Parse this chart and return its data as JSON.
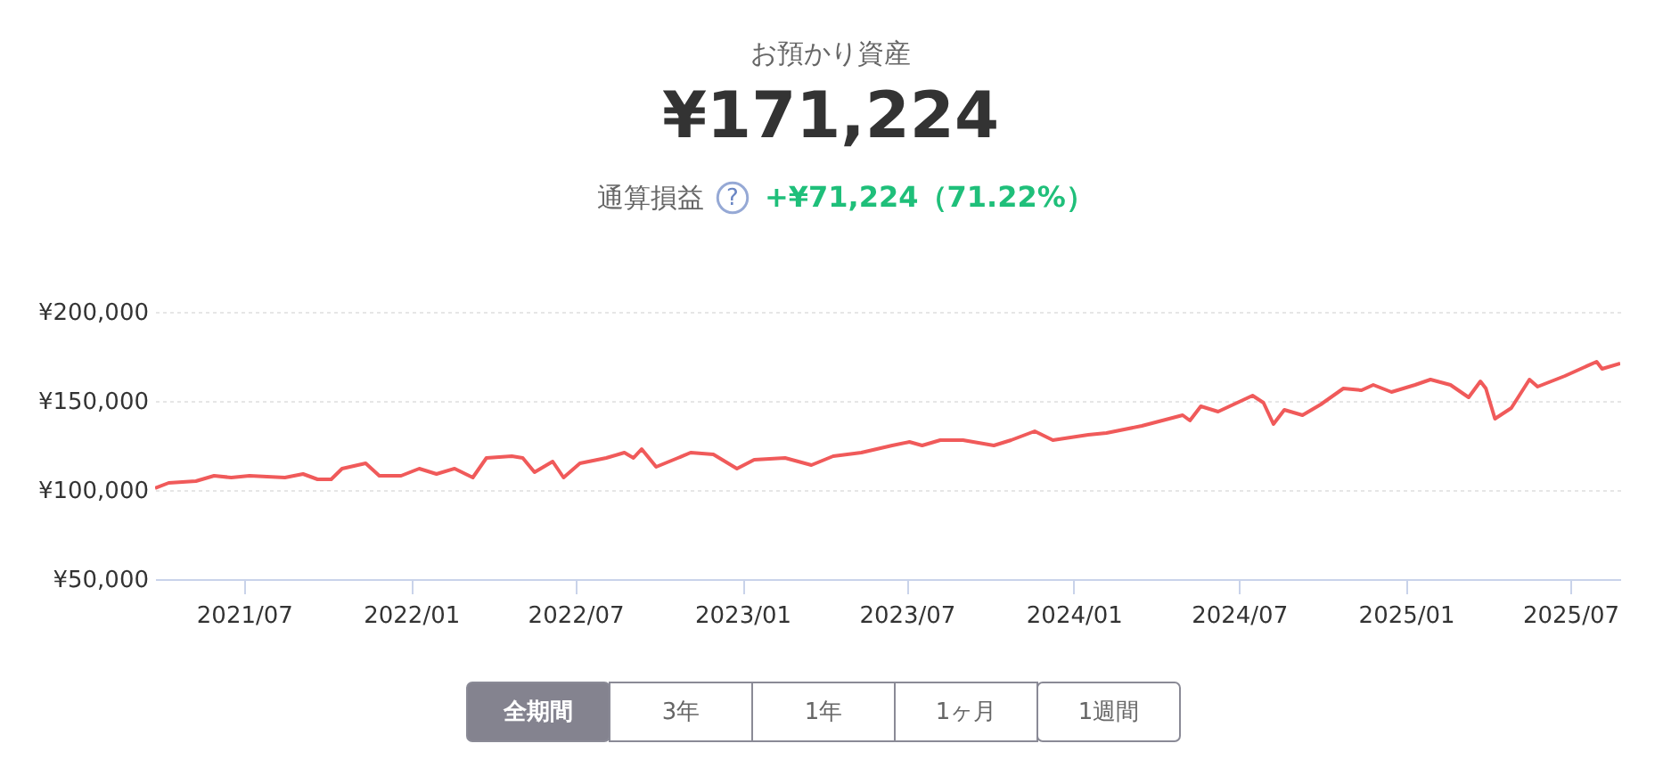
{
  "chart_data": {
    "type": "line",
    "title": "お預かり資産",
    "subtitle": "¥171,224",
    "annotations": [
      "通算損益",
      "?",
      "+¥71,224（71.22%）",
      "全期間",
      "3年",
      "1年",
      "1ヶ月",
      "1週間"
    ],
    "x": [
      "2021-03-25",
      "2021-04-09",
      "2021-05-09",
      "2021-05-29",
      "2021-06-17",
      "2021-07-07",
      "2021-08-15",
      "2021-09-04",
      "2021-09-20",
      "2021-10-05",
      "2021-10-17",
      "2021-11-12",
      "2021-11-27",
      "2021-12-21",
      "2022-01-10",
      "2022-01-29",
      "2022-02-18",
      "2022-03-10",
      "2022-03-25",
      "2022-04-22",
      "2022-05-04",
      "2022-05-17",
      "2022-06-06",
      "2022-06-18",
      "2022-07-06",
      "2022-08-04",
      "2022-08-24",
      "2022-09-03",
      "2022-09-12",
      "2022-09-28",
      "2022-10-22",
      "2022-11-05",
      "2022-11-30",
      "2022-12-26",
      "2023-01-14",
      "2023-02-17",
      "2023-03-18",
      "2023-04-11",
      "2023-05-12",
      "2023-06-15",
      "2023-07-04",
      "2023-07-18",
      "2023-08-07",
      "2023-09-01",
      "2023-10-05",
      "2023-10-24",
      "2023-11-19",
      "2023-12-09",
      "2024-01-17",
      "2024-02-06",
      "2024-03-16",
      "2024-04-30",
      "2024-05-08",
      "2024-05-20",
      "2024-06-08",
      "2024-07-16",
      "2024-07-28",
      "2024-08-08",
      "2024-08-20",
      "2024-09-09",
      "2024-09-29",
      "2024-10-24",
      "2024-11-13",
      "2024-11-26",
      "2024-12-16",
      "2025-01-11",
      "2025-01-28",
      "2025-02-19",
      "2025-03-11",
      "2025-03-24",
      "2025-03-30",
      "2025-04-09",
      "2025-04-27",
      "2025-05-17",
      "2025-05-26",
      "2025-06-25",
      "2025-07-30",
      "2025-08-05",
      "2025-08-25"
    ],
    "series": [
      {
        "color": "#f05a5a",
        "values": [
          101000,
          104000,
          105000,
          108000,
          107000,
          108000,
          107000,
          109000,
          106000,
          106000,
          112000,
          115000,
          108000,
          108000,
          112000,
          109000,
          112000,
          107000,
          118000,
          119000,
          118000,
          110000,
          116000,
          107000,
          115000,
          118000,
          121000,
          118000,
          123000,
          113000,
          118000,
          121000,
          120000,
          112000,
          117000,
          118000,
          114000,
          119000,
          121000,
          125000,
          127000,
          125000,
          128000,
          128000,
          125000,
          128000,
          133000,
          128000,
          131000,
          132000,
          136000,
          142000,
          139000,
          147000,
          144000,
          153000,
          149000,
          137000,
          145000,
          142000,
          148000,
          157000,
          156000,
          159000,
          155000,
          159000,
          162000,
          159000,
          152000,
          161000,
          157000,
          140000,
          146000,
          162000,
          158000,
          164000,
          172000,
          168000,
          171000
        ]
      }
    ],
    "xlim": [
      "2021-03-25",
      "2025-08-25"
    ],
    "xticks": [
      {
        "value": "2021-07-01",
        "label": "2021/07"
      },
      {
        "value": "2022-01-01",
        "label": "2022/01"
      },
      {
        "value": "2022-07-01",
        "label": "2022/07"
      },
      {
        "value": "2023-01-01",
        "label": "2023/01"
      },
      {
        "value": "2023-07-01",
        "label": "2023/07"
      },
      {
        "value": "2024-01-01",
        "label": "2024/01"
      },
      {
        "value": "2024-07-01",
        "label": "2024/07"
      },
      {
        "value": "2025-01-01",
        "label": "2025/01"
      },
      {
        "value": "2025-07-01",
        "label": "2025/07"
      }
    ],
    "ylim": [
      50000,
      200000
    ],
    "yticks": [
      {
        "value": 50000,
        "label": "¥50,000"
      },
      {
        "value": 100000,
        "label": "¥100,000"
      },
      {
        "value": 150000,
        "label": "¥150,000"
      },
      {
        "value": 200000,
        "label": "¥200,000"
      }
    ],
    "grid": "y",
    "marker": "none",
    "line_style": "solid"
  }
}
